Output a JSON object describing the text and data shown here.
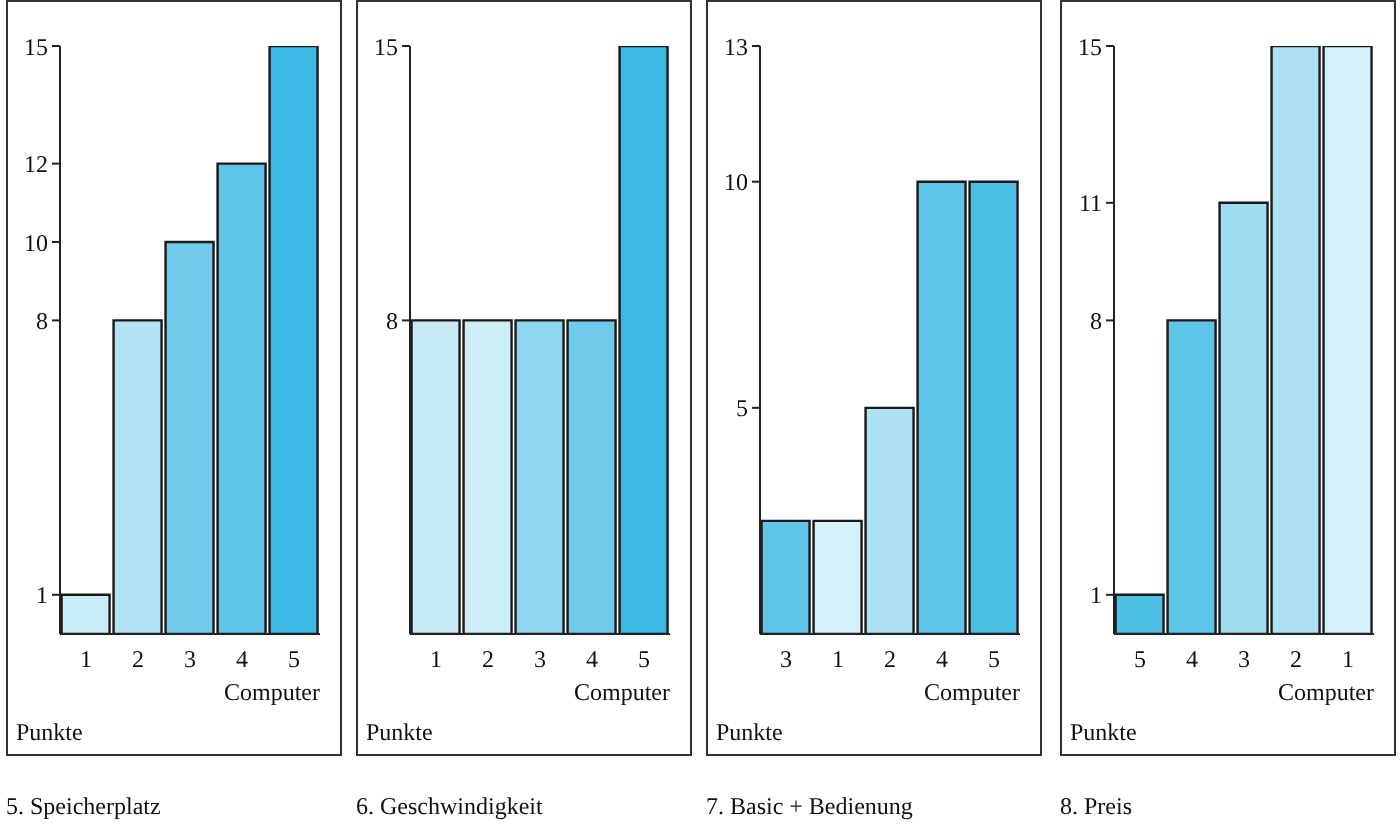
{
  "chart_data": [
    {
      "type": "bar",
      "title": "5. Speicherplatz",
      "xlabel": "Computer",
      "ylabel": "Punkte",
      "categories": [
        "1",
        "2",
        "3",
        "4",
        "5"
      ],
      "values": [
        1,
        8,
        10,
        12,
        15
      ],
      "colors": [
        "#c9ebf5",
        "#b3e3f2",
        "#6fcbe9",
        "#5ec5e8",
        "#3ab9e4"
      ],
      "ylim": [
        0,
        15
      ],
      "yticks": [
        1,
        8,
        10,
        12,
        15
      ]
    },
    {
      "type": "bar",
      "title": "6. Geschwindigkeit",
      "xlabel": "Computer",
      "ylabel": "Punkte",
      "categories": [
        "1",
        "2",
        "3",
        "4",
        "5"
      ],
      "values": [
        8,
        8,
        8,
        8,
        15
      ],
      "colors": [
        "#c5e9f5",
        "#cdeef7",
        "#8ed6ee",
        "#6fcbe9",
        "#3ab9e4"
      ],
      "ylim": [
        0,
        15
      ],
      "yticks": [
        8,
        15
      ]
    },
    {
      "type": "bar",
      "title": "7. Basic + Bedienung",
      "xlabel": "Computer",
      "ylabel": "Punkte",
      "categories": [
        "3",
        "1",
        "2",
        "4",
        "5"
      ],
      "values": [
        2.5,
        2.5,
        5,
        10,
        10
      ],
      "colors": [
        "#5ec5e8",
        "#d5f0f8",
        "#aee2f2",
        "#5ec5e8",
        "#4bbfe6"
      ],
      "ylim": [
        0,
        13
      ],
      "yticks": [
        5,
        10,
        13
      ]
    },
    {
      "type": "bar",
      "title": "8. Preis",
      "xlabel": "Computer",
      "ylabel": "Punkte",
      "categories": [
        "5",
        "4",
        "3",
        "2",
        "1"
      ],
      "values": [
        1,
        8,
        11,
        15,
        15
      ],
      "colors": [
        "#4bbfe6",
        "#5ec5e8",
        "#9fdcf0",
        "#aee2f2",
        "#d5f0f8"
      ],
      "ylim": [
        0,
        15
      ],
      "yticks": [
        1,
        8,
        11,
        15
      ]
    }
  ]
}
